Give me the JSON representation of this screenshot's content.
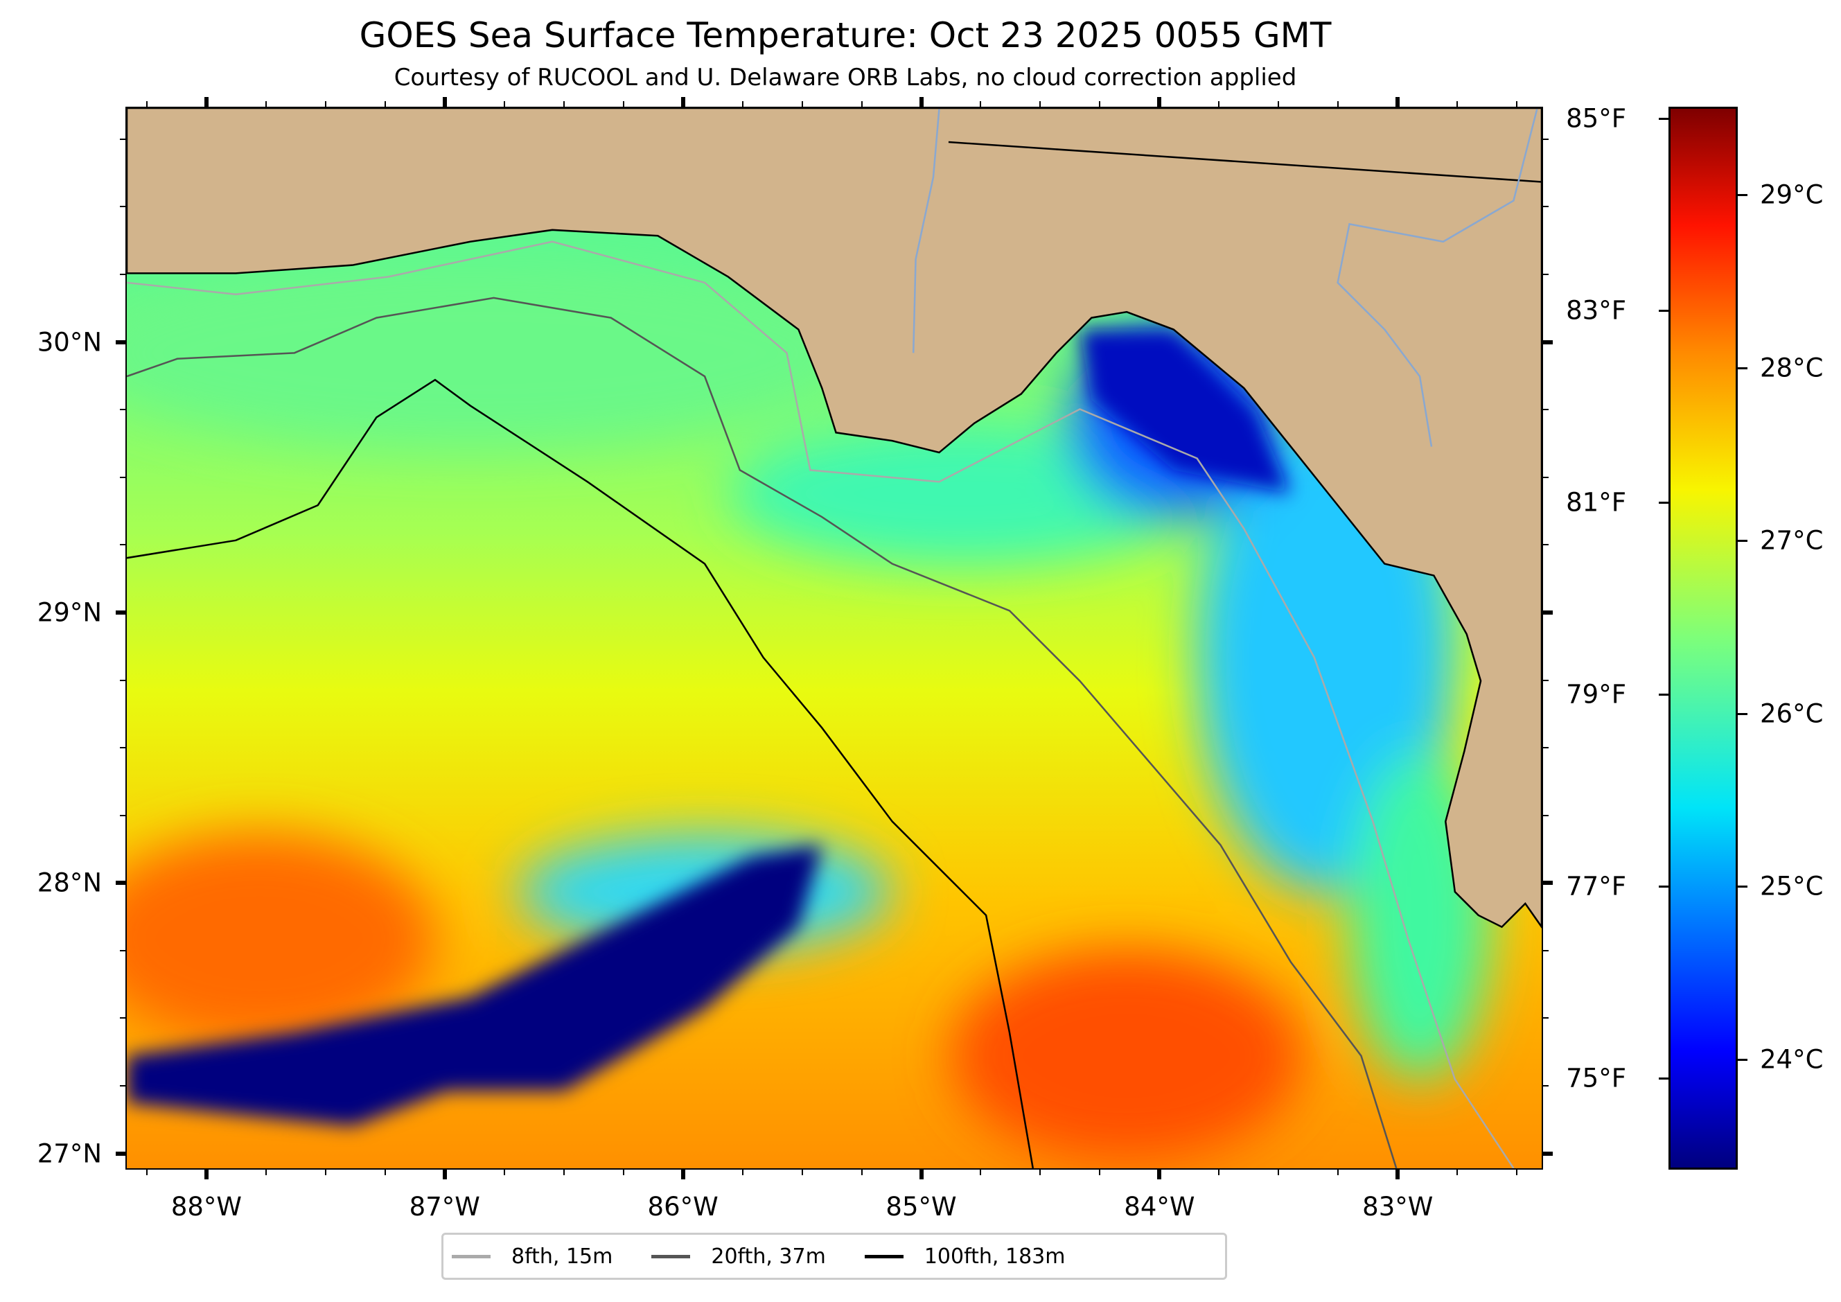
{
  "title": "GOES Sea Surface Temperature: Oct 23 2025 0055 GMT",
  "subtitle": "Courtesy of RUCOOL and U. Delaware ORB Labs, no cloud correction applied",
  "map": {
    "lon_range": [
      -88.34,
      -82.39
    ],
    "lat_range": [
      26.94,
      30.87
    ],
    "lon_ticks": [
      {
        "value": -88,
        "label": "88°W"
      },
      {
        "value": -87,
        "label": "87°W"
      },
      {
        "value": -86,
        "label": "86°W"
      },
      {
        "value": -85,
        "label": "85°W"
      },
      {
        "value": -84,
        "label": "84°W"
      },
      {
        "value": -83,
        "label": "83°W"
      }
    ],
    "lat_ticks": [
      {
        "value": 30,
        "label": "30°N"
      },
      {
        "value": 29,
        "label": "29°N"
      },
      {
        "value": 28,
        "label": "28°N"
      },
      {
        "value": 27,
        "label": "27°N"
      }
    ],
    "colors": {
      "land": "#d2b48c",
      "no_data": "#ffffff"
    }
  },
  "colorbar": {
    "colormap": "jet",
    "range_f": [
      74.05,
      85.12
    ],
    "fahrenheit_ticks": [
      {
        "value": 85,
        "label": "85°F"
      },
      {
        "value": 83,
        "label": "83°F"
      },
      {
        "value": 81,
        "label": "81°F"
      },
      {
        "value": 79,
        "label": "79°F"
      },
      {
        "value": 77,
        "label": "77°F"
      },
      {
        "value": 75,
        "label": "75°F"
      }
    ],
    "celsius_ticks": [
      {
        "value": 29,
        "label": "29°C"
      },
      {
        "value": 28,
        "label": "28°C"
      },
      {
        "value": 27,
        "label": "27°C"
      },
      {
        "value": 26,
        "label": "26°C"
      },
      {
        "value": 25,
        "label": "25°C"
      },
      {
        "value": 24,
        "label": "24°C"
      }
    ]
  },
  "legend": [
    {
      "label": "8fth, 15m",
      "color": "#aaaaaa"
    },
    {
      "label": "20fth, 37m",
      "color": "#555555"
    },
    {
      "label": "100fth, 183m",
      "color": "#000000"
    }
  ]
}
